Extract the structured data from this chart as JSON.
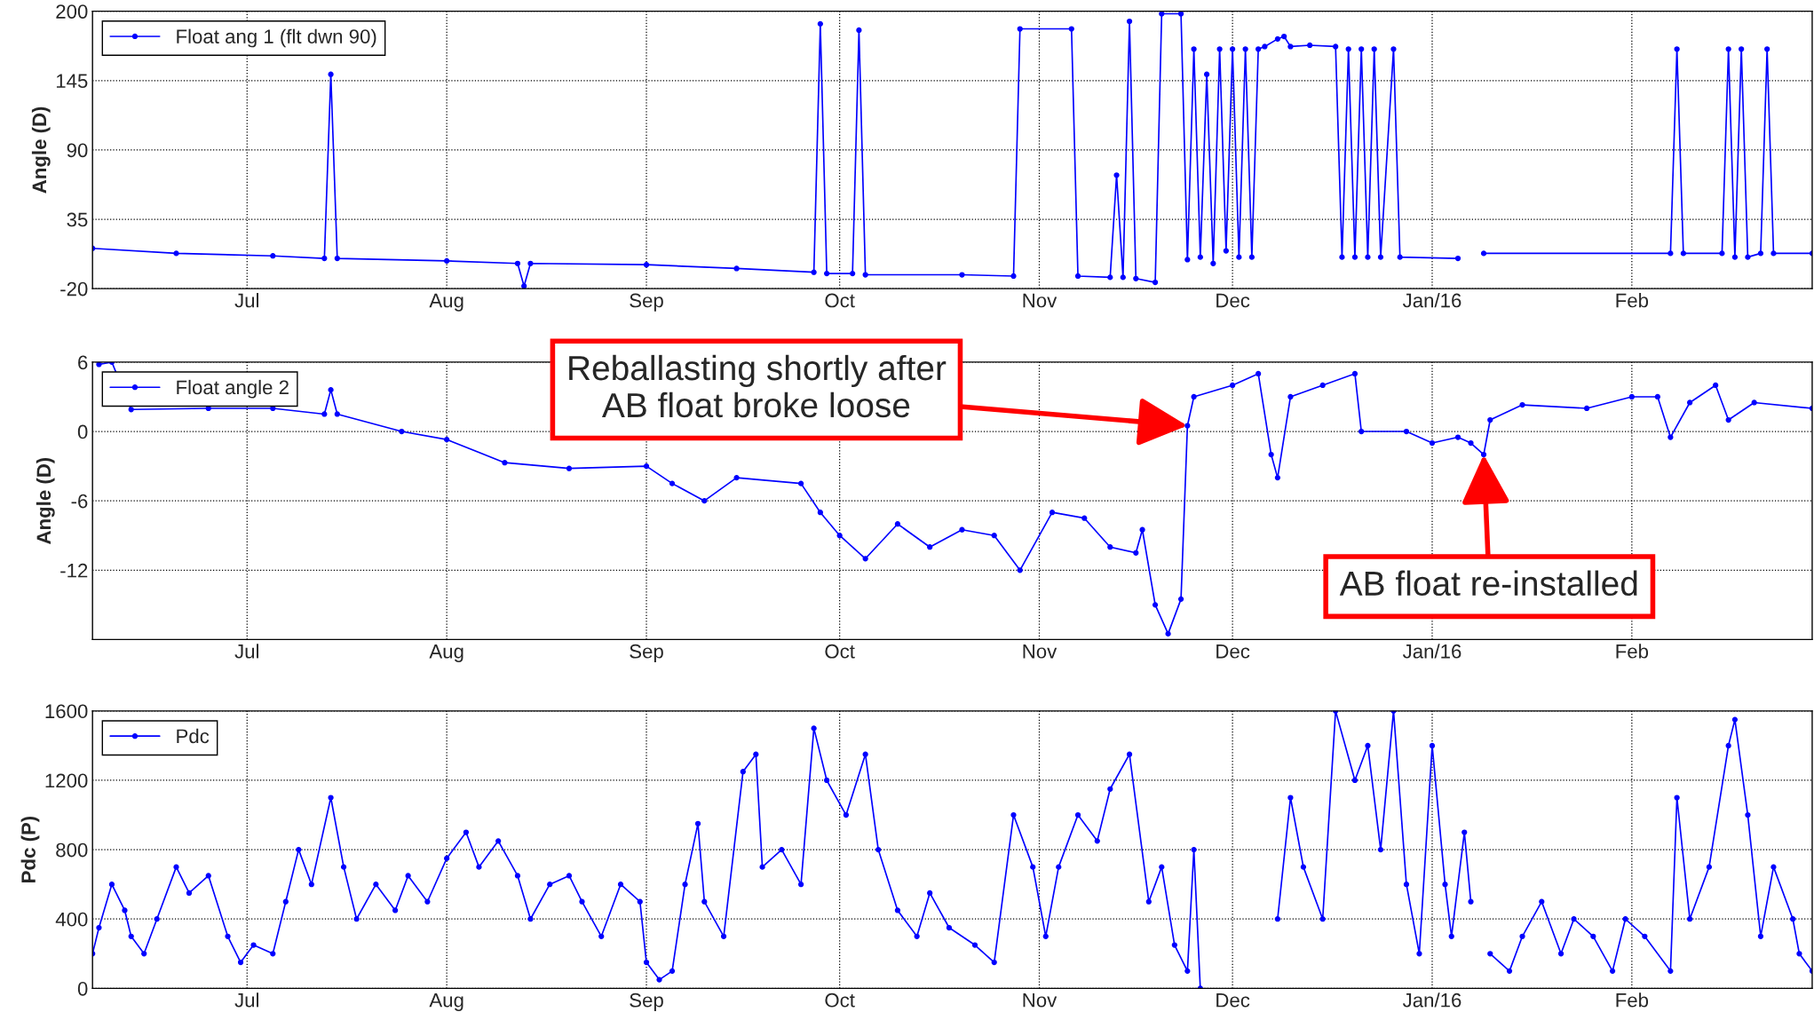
{
  "chart_data": [
    {
      "type": "line",
      "ylabel": "Angle (D)",
      "xlim": [
        "2015-06-07",
        "2016-02-29"
      ],
      "ylim": [
        -20,
        200
      ],
      "yticks": [
        -20,
        35,
        90,
        145,
        200
      ],
      "xticks": [
        {
          "value": "2015-07-01",
          "label": "Jul"
        },
        {
          "value": "2015-08-01",
          "label": "Aug"
        },
        {
          "value": "2015-09-01",
          "label": "Sep"
        },
        {
          "value": "2015-10-01",
          "label": "Oct"
        },
        {
          "value": "2015-11-01",
          "label": "Nov"
        },
        {
          "value": "2015-12-01",
          "label": "Dec"
        },
        {
          "value": "2016-01-01",
          "label": "Jan/16"
        },
        {
          "value": "2016-02-01",
          "label": "Feb"
        }
      ],
      "grid": true,
      "legend": "top left",
      "marker": "circle",
      "line_style": "solid",
      "x": [
        "2015-06-07",
        "2015-06-20",
        "2015-07-05",
        "2015-07-13",
        "2015-07-14",
        "2015-07-15",
        "2015-08-01",
        "2015-08-12",
        "2015-08-13",
        "2015-08-14",
        "2015-09-01",
        "2015-09-15",
        "2015-09-27",
        "2015-09-28",
        "2015-09-29",
        "2015-10-03",
        "2015-10-04",
        "2015-10-05",
        "2015-10-20",
        "2015-10-28",
        "2015-10-29",
        "2015-11-06",
        "2015-11-07",
        "2015-11-12",
        "2015-11-13",
        "2015-11-14",
        "2015-11-15",
        "2015-11-16",
        "2015-11-19",
        "2015-11-20",
        "2015-11-23",
        "2015-11-24",
        "2015-11-25",
        "2015-11-26",
        "2015-11-27",
        "2015-11-28",
        "2015-11-29",
        "2015-11-30",
        "2015-12-01",
        "2015-12-02",
        "2015-12-03",
        "2015-12-04",
        "2015-12-05",
        "2015-12-06",
        "2015-12-08",
        "2015-12-09",
        "2015-12-10",
        "2015-12-13",
        "2015-12-17",
        "2015-12-18",
        "2015-12-19",
        "2015-12-20",
        "2015-12-21",
        "2015-12-22",
        "2015-12-23",
        "2015-12-24",
        "2015-12-26",
        "2015-12-27",
        "2016-01-05",
        "2016-01-07",
        "2016-01-09",
        "2016-02-07",
        "2016-02-08",
        "2016-02-09",
        "2016-02-15",
        "2016-02-16",
        "2016-02-17",
        "2016-02-18",
        "2016-02-19",
        "2016-02-21",
        "2016-02-22",
        "2016-02-23",
        "2016-02-29"
      ],
      "series": [
        {
          "name": "Float ang 1 (flt dwn 90)",
          "color": "#0000ff",
          "values": [
            12,
            8,
            6,
            4,
            150,
            4,
            2,
            0,
            -18,
            0,
            -1,
            -4,
            -7,
            190,
            -8,
            -8,
            185,
            -9,
            -9,
            -10,
            186,
            186,
            -10,
            -11,
            70,
            -11,
            192,
            -12,
            -15,
            198,
            198,
            3,
            170,
            5,
            150,
            0,
            170,
            10,
            170,
            5,
            170,
            5,
            170,
            172,
            178,
            180,
            172,
            173,
            172,
            5,
            170,
            5,
            170,
            5,
            170,
            5,
            170,
            5,
            4,
            null,
            8,
            8,
            170,
            8,
            8,
            170,
            5,
            170,
            5,
            8,
            170,
            8,
            8
          ]
        }
      ]
    },
    {
      "type": "line",
      "ylabel": "Angle (D)",
      "xlim": [
        "2015-06-07",
        "2016-02-29"
      ],
      "ylim": [
        -18,
        6
      ],
      "yticks": [
        -12,
        -6,
        0,
        6
      ],
      "xticks": [
        {
          "value": "2015-07-01",
          "label": "Jul"
        },
        {
          "value": "2015-08-01",
          "label": "Aug"
        },
        {
          "value": "2015-09-01",
          "label": "Sep"
        },
        {
          "value": "2015-10-01",
          "label": "Oct"
        },
        {
          "value": "2015-11-01",
          "label": "Nov"
        },
        {
          "value": "2015-12-01",
          "label": "Dec"
        },
        {
          "value": "2016-01-01",
          "label": "Jan/16"
        },
        {
          "value": "2016-02-01",
          "label": "Feb"
        }
      ],
      "grid": true,
      "legend": "top left",
      "marker": "circle",
      "line_style": "solid",
      "annotations": [
        {
          "text": "Reballasting shortly after\nAB float broke loose",
          "x": "2015-11-24",
          "y": 0.5
        },
        {
          "text": "AB float re-installed",
          "x": "2016-01-09",
          "y": -2
        }
      ],
      "x": [
        "2015-06-08",
        "2015-06-10",
        "2015-06-13",
        "2015-06-25",
        "2015-07-05",
        "2015-07-13",
        "2015-07-14",
        "2015-07-15",
        "2015-07-25",
        "2015-08-01",
        "2015-08-10",
        "2015-08-20",
        "2015-09-01",
        "2015-09-05",
        "2015-09-10",
        "2015-09-15",
        "2015-09-25",
        "2015-09-28",
        "2015-10-01",
        "2015-10-05",
        "2015-10-10",
        "2015-10-15",
        "2015-10-20",
        "2015-10-25",
        "2015-10-29",
        "2015-11-03",
        "2015-11-08",
        "2015-11-12",
        "2015-11-16",
        "2015-11-17",
        "2015-11-19",
        "2015-11-21",
        "2015-11-23",
        "2015-11-24",
        "2015-11-25",
        "2015-12-01",
        "2015-12-05",
        "2015-12-07",
        "2015-12-08",
        "2015-12-10",
        "2015-12-15",
        "2015-12-20",
        "2015-12-21",
        "2015-12-28",
        "2016-01-01",
        "2016-01-05",
        "2016-01-07",
        "2016-01-09",
        "2016-01-10",
        "2016-01-15",
        "2016-01-25",
        "2016-02-01",
        "2016-02-05",
        "2016-02-07",
        "2016-02-10",
        "2016-02-14",
        "2016-02-16",
        "2016-02-20",
        "2016-02-29"
      ],
      "series": [
        {
          "name": "Float angle 2",
          "color": "#0000ff",
          "values": [
            5.8,
            6,
            1.9,
            2,
            2,
            1.5,
            3.6,
            1.5,
            0,
            -0.7,
            -2.7,
            -3.2,
            -3,
            -4.5,
            -6,
            -4,
            -4.5,
            -7,
            -9,
            -11,
            -8,
            -10,
            -8.5,
            -9,
            -12,
            -7,
            -7.5,
            -10,
            -10.5,
            -8.5,
            -15,
            -17.5,
            -14.5,
            0.5,
            3,
            4,
            5,
            -2,
            -4,
            3,
            4,
            5,
            0,
            0,
            -1,
            -0.5,
            -1,
            -2,
            1,
            2.3,
            2,
            3,
            3,
            -0.5,
            2.5,
            4,
            1,
            2.5,
            2
          ]
        }
      ]
    },
    {
      "type": "line",
      "ylabel": "Pdc (P)",
      "xlim": [
        "2015-06-07",
        "2016-02-29"
      ],
      "ylim": [
        0,
        1600
      ],
      "yticks": [
        0,
        400,
        800,
        1200,
        1600
      ],
      "xticks": [
        {
          "value": "2015-07-01",
          "label": "Jul"
        },
        {
          "value": "2015-08-01",
          "label": "Aug"
        },
        {
          "value": "2015-09-01",
          "label": "Sep"
        },
        {
          "value": "2015-10-01",
          "label": "Oct"
        },
        {
          "value": "2015-11-01",
          "label": "Nov"
        },
        {
          "value": "2015-12-01",
          "label": "Dec"
        },
        {
          "value": "2016-01-01",
          "label": "Jan/16"
        },
        {
          "value": "2016-02-01",
          "label": "Feb"
        }
      ],
      "grid": true,
      "legend": "top left",
      "marker": "circle",
      "line_style": "solid",
      "x": [
        "2015-06-07",
        "2015-06-08",
        "2015-06-10",
        "2015-06-12",
        "2015-06-13",
        "2015-06-15",
        "2015-06-17",
        "2015-06-20",
        "2015-06-22",
        "2015-06-25",
        "2015-06-28",
        "2015-06-30",
        "2015-07-02",
        "2015-07-05",
        "2015-07-07",
        "2015-07-09",
        "2015-07-11",
        "2015-07-14",
        "2015-07-16",
        "2015-07-18",
        "2015-07-21",
        "2015-07-24",
        "2015-07-26",
        "2015-07-29",
        "2015-08-01",
        "2015-08-04",
        "2015-08-06",
        "2015-08-09",
        "2015-08-12",
        "2015-08-14",
        "2015-08-17",
        "2015-08-20",
        "2015-08-22",
        "2015-08-25",
        "2015-08-28",
        "2015-08-31",
        "2015-09-01",
        "2015-09-03",
        "2015-09-05",
        "2015-09-07",
        "2015-09-09",
        "2015-09-10",
        "2015-09-13",
        "2015-09-16",
        "2015-09-18",
        "2015-09-19",
        "2015-09-22",
        "2015-09-25",
        "2015-09-27",
        "2015-09-29",
        "2015-10-02",
        "2015-10-05",
        "2015-10-07",
        "2015-10-10",
        "2015-10-13",
        "2015-10-15",
        "2015-10-18",
        "2015-10-22",
        "2015-10-25",
        "2015-10-28",
        "2015-10-31",
        "2015-11-02",
        "2015-11-04",
        "2015-11-07",
        "2015-11-10",
        "2015-11-12",
        "2015-11-15",
        "2015-11-18",
        "2015-11-20",
        "2015-11-22",
        "2015-11-24",
        "2015-11-25",
        "2015-11-26",
        "2015-12-01",
        "2015-12-08",
        "2015-12-10",
        "2015-12-12",
        "2015-12-15",
        "2015-12-17",
        "2015-12-20",
        "2015-12-22",
        "2015-12-24",
        "2015-12-26",
        "2015-12-28",
        "2015-12-30",
        "2016-01-01",
        "2016-01-03",
        "2016-01-04",
        "2016-01-06",
        "2016-01-07",
        "2016-01-08",
        "2016-01-10",
        "2016-01-13",
        "2016-01-15",
        "2016-01-18",
        "2016-01-21",
        "2016-01-23",
        "2016-01-26",
        "2016-01-29",
        "2016-01-31",
        "2016-02-03",
        "2016-02-07",
        "2016-02-08",
        "2016-02-10",
        "2016-02-13",
        "2016-02-16",
        "2016-02-17",
        "2016-02-19",
        "2016-02-21",
        "2016-02-23",
        "2016-02-26",
        "2016-02-27",
        "2016-02-29"
      ],
      "series": [
        {
          "name": "Pdc",
          "color": "#0000ff",
          "values": [
            200,
            350,
            600,
            450,
            300,
            200,
            400,
            700,
            550,
            650,
            300,
            150,
            250,
            200,
            500,
            800,
            600,
            1100,
            700,
            400,
            600,
            450,
            650,
            500,
            750,
            900,
            700,
            850,
            650,
            400,
            600,
            650,
            500,
            300,
            600,
            500,
            150,
            50,
            100,
            600,
            950,
            500,
            300,
            1250,
            1350,
            700,
            800,
            600,
            1500,
            1200,
            1000,
            1350,
            800,
            450,
            300,
            550,
            350,
            250,
            150,
            1000,
            700,
            300,
            700,
            1000,
            850,
            1150,
            1350,
            500,
            700,
            250,
            100,
            800,
            0,
            null,
            400,
            1100,
            700,
            400,
            1600,
            1200,
            1400,
            800,
            1600,
            600,
            200,
            1400,
            600,
            300,
            900,
            500,
            null,
            200,
            100,
            300,
            500,
            200,
            400,
            300,
            100,
            400,
            300,
            100,
            1100,
            400,
            700,
            1400,
            1550,
            1000,
            300,
            700,
            400,
            200,
            100
          ]
        }
      ]
    }
  ]
}
